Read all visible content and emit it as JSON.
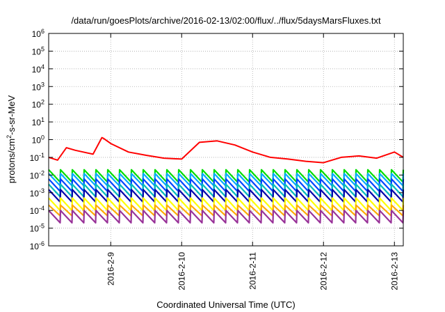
{
  "chart_data": {
    "type": "line",
    "title": "/data/run/goesPlots/archive/2016-02-13/02:00/flux/../flux/5daysMarsFluxes.txt",
    "xlabel": "Coordinated Universal Time (UTC)",
    "ylabel_parts": {
      "base": "protons/cm",
      "sup": "2",
      "rest": "-s-sr-MeV"
    },
    "y_scale": "log",
    "ylim": [
      1e-06,
      1000000.0
    ],
    "y_ticks": [
      {
        "exp": "6",
        "value": 1000000.0
      },
      {
        "exp": "5",
        "value": 100000.0
      },
      {
        "exp": "4",
        "value": 10000.0
      },
      {
        "exp": "3",
        "value": 1000.0
      },
      {
        "exp": "2",
        "value": 100.0
      },
      {
        "exp": "1",
        "value": 10.0
      },
      {
        "exp": "0",
        "value": 1
      },
      {
        "exp": "-1",
        "value": 0.1
      },
      {
        "exp": "-2",
        "value": 0.01
      },
      {
        "exp": "-3",
        "value": 0.001
      },
      {
        "exp": "-4",
        "value": 0.0001
      },
      {
        "exp": "-5",
        "value": 1e-05
      },
      {
        "exp": "-6",
        "value": 1e-06
      }
    ],
    "xlim": [
      "2016-02-08T03:00",
      "2016-02-13T03:00"
    ],
    "x_ticks": [
      "2016-2-9",
      "2016-2-10",
      "2016-2-11",
      "2016-2-12",
      "2016-2-13"
    ],
    "x_tick_dates": [
      "2016-02-09",
      "2016-02-10",
      "2016-02-11",
      "2016-02-12",
      "2016-02-13"
    ],
    "grid": true,
    "series": [
      {
        "color": "#ff0000",
        "x": [
          "2016-02-08T03:00",
          "2016-02-08T06:00",
          "2016-02-08T09:00",
          "2016-02-08T12:00",
          "2016-02-08T18:00",
          "2016-02-08T21:00",
          "2016-02-08T21:30",
          "2016-02-09T00:00",
          "2016-02-09T06:00",
          "2016-02-09T12:00",
          "2016-02-09T18:00",
          "2016-02-10T00:00",
          "2016-02-10T06:00",
          "2016-02-10T12:00",
          "2016-02-10T18:00",
          "2016-02-11T00:00",
          "2016-02-11T06:00",
          "2016-02-11T12:00",
          "2016-02-11T18:00",
          "2016-02-12T00:00",
          "2016-02-12T06:00",
          "2016-02-12T12:00",
          "2016-02-12T18:00",
          "2016-02-13T00:00",
          "2016-02-13T03:00"
        ],
        "y": [
          0.1,
          0.07,
          0.35,
          0.25,
          0.15,
          1.3,
          1.2,
          0.6,
          0.2,
          0.13,
          0.09,
          0.08,
          0.7,
          0.85,
          0.5,
          0.2,
          0.1,
          0.08,
          0.06,
          0.05,
          0.1,
          0.12,
          0.09,
          0.2,
          0.1
        ]
      },
      {
        "color": "#00dd00",
        "x": [
          "2016-02-08T03:00",
          "2016-02-13T03:00"
        ],
        "peak": 0.02,
        "trough": 0.004
      },
      {
        "color": "#00aaff",
        "x": [
          "2016-02-08T03:00",
          "2016-02-13T03:00"
        ],
        "peak": 0.012,
        "trough": 0.0025
      },
      {
        "color": "#0044ff",
        "x": [
          "2016-02-08T03:00",
          "2016-02-13T03:00"
        ],
        "peak": 0.006,
        "trough": 0.0012
      },
      {
        "color": "#00bbbb",
        "x": [
          "2016-02-08T03:00",
          "2016-02-13T03:00"
        ],
        "peak": 0.003,
        "trough": 0.0006
      },
      {
        "color": "#0000aa",
        "x": [
          "2016-02-08T03:00",
          "2016-02-13T03:00"
        ],
        "peak": 0.0015,
        "trough": 0.0003
      },
      {
        "color": "#ffff00",
        "x": [
          "2016-02-08T03:00",
          "2016-02-13T03:00"
        ],
        "peak": 0.0005,
        "trough": 0.0001
      },
      {
        "color": "#ffaa00",
        "x": [
          "2016-02-08T03:00",
          "2016-02-13T03:00"
        ],
        "peak": 0.0002,
        "trough": 5e-05
      },
      {
        "color": "#993399",
        "x": [
          "2016-02-08T03:00",
          "2016-02-13T03:00"
        ],
        "peak": 0.0001,
        "trough": 2e-05
      }
    ]
  }
}
